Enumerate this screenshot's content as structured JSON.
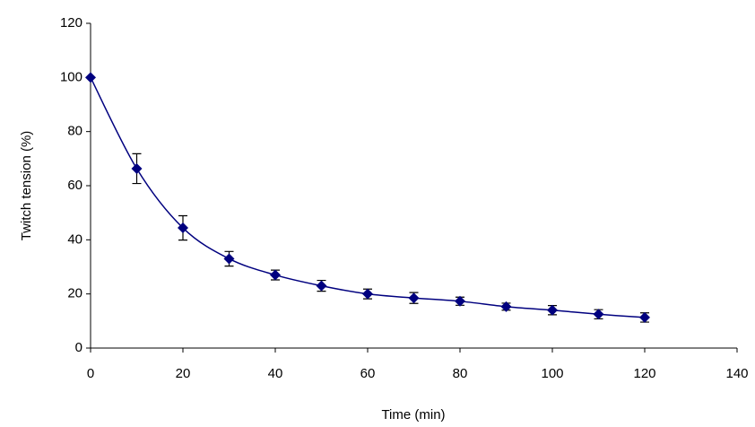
{
  "chart_data": {
    "type": "scatter",
    "x_label": "Time (min)",
    "y_label": "Twitch tension (%)",
    "x": [
      0,
      10,
      20,
      30,
      40,
      50,
      60,
      70,
      80,
      90,
      100,
      110,
      120
    ],
    "series": [
      {
        "color": "#00007f",
        "values": [
          100,
          66.3,
          44.4,
          33,
          27,
          23,
          20,
          18.5,
          17.3,
          15.3,
          14,
          12.5,
          11.3
        ],
        "errors": [
          0,
          5.5,
          4.5,
          2.7,
          1.8,
          2,
          1.8,
          2,
          1.5,
          1.3,
          1.7,
          1.7,
          1.7
        ]
      }
    ],
    "xlim": [
      0,
      140
    ],
    "xticks": [
      0,
      20,
      40,
      60,
      80,
      100,
      120,
      140
    ],
    "ylim": [
      0,
      120
    ],
    "yticks": [
      0,
      20,
      40,
      60,
      80,
      100,
      120
    ],
    "grid": false,
    "smooth": true
  }
}
